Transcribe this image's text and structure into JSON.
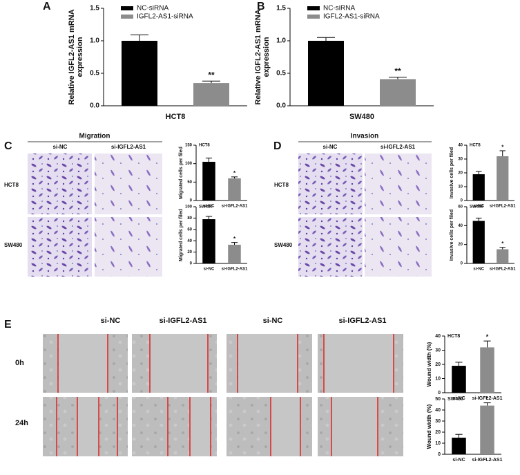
{
  "labels": {
    "panel_letters": [
      "A",
      "B",
      "C",
      "D",
      "E"
    ],
    "migration": "Migration",
    "invasion": "Invasion",
    "C_columns": [
      "si-NC",
      "si-IGFL2-AS1"
    ],
    "C_rows": [
      "HCT8",
      "SW480"
    ],
    "D_columns": [
      "si-NC",
      "si-IGFL2-AS1"
    ],
    "D_rows": [
      "HCT8",
      "SW480"
    ],
    "E_columns": [
      "si-NC",
      "si-IGFL2-AS1",
      "si-NC",
      "si-IGFL2-AS1"
    ],
    "E_rows": [
      "0h",
      "24h"
    ]
  },
  "chart_data": [
    {
      "type": "bar",
      "y_label": [
        "Relative IGFL2-AS1 mRNA",
        "expression"
      ],
      "x_label": "HCT8",
      "series": [
        {
          "name": "NC-siRNA",
          "color": "#000000",
          "values": [
            1.0
          ],
          "errors": [
            0.09
          ]
        },
        {
          "name": "IGFL2-AS1-siRNA",
          "color": "#8c8c8c",
          "values": [
            0.35
          ],
          "errors": [
            0.03
          ]
        }
      ],
      "annotation": "**",
      "ylim": [
        0,
        1.5
      ],
      "yticks": [
        {
          "value": 0,
          "label": "0.0"
        },
        {
          "value": 0.5,
          "label": "0.5"
        },
        {
          "value": 1,
          "label": "1.0"
        },
        {
          "value": 1.5,
          "label": "1.5"
        }
      ]
    },
    {
      "type": "bar",
      "y_label": [
        "Relative IGFL2-AS1 mRNA",
        "expression"
      ],
      "x_label": "SW480",
      "series": [
        {
          "name": "NC-siRNA",
          "color": "#000000",
          "values": [
            1.0
          ],
          "errors": [
            0.05
          ]
        },
        {
          "name": "IGFL2-AS1-siRNA",
          "color": "#8c8c8c",
          "values": [
            0.41
          ],
          "errors": [
            0.03
          ]
        }
      ],
      "annotation": "**",
      "ylim": [
        0,
        1.5
      ],
      "yticks": [
        {
          "value": 0,
          "label": "0.0"
        },
        {
          "value": 0.5,
          "label": "0.5"
        },
        {
          "value": 1,
          "label": "1.0"
        },
        {
          "value": 1.5,
          "label": "1.5"
        }
      ]
    },
    {
      "type": "bar",
      "title": "HCT8",
      "y_label": "Migrated cells per filed",
      "categories": [
        "si-NC",
        "si-IGFL2-AS1"
      ],
      "values": [
        105,
        60
      ],
      "errors": [
        10,
        4
      ],
      "colors": [
        "#000000",
        "#8c8c8c"
      ],
      "annotation": "*",
      "ylim": [
        0,
        150
      ],
      "yticks": [
        0,
        50,
        100,
        150
      ]
    },
    {
      "type": "bar",
      "title": "SW480",
      "y_label": "Migrated cells per filed",
      "categories": [
        "si-NC",
        "si-IGFL2-AS1"
      ],
      "values": [
        78,
        33
      ],
      "errors": [
        5,
        4
      ],
      "colors": [
        "#000000",
        "#8c8c8c"
      ],
      "annotation": "*",
      "ylim": [
        0,
        100
      ],
      "yticks": [
        0,
        20,
        40,
        60,
        80,
        100
      ]
    },
    {
      "type": "bar",
      "title": "HCT8",
      "y_label": "Invasive cells per filed",
      "categories": [
        "si-NC",
        "si-IGFL2-AS1"
      ],
      "values": [
        19,
        32
      ],
      "errors": [
        2,
        4
      ],
      "colors": [
        "#000000",
        "#8c8c8c"
      ],
      "annotation": "*",
      "ylim": [
        0,
        40
      ],
      "yticks": [
        0,
        10,
        20,
        30,
        40
      ]
    },
    {
      "type": "bar",
      "title": "SW480",
      "y_label": "Invasive cells per filed",
      "categories": [
        "si-NC",
        "si-IGFL2-AS1"
      ],
      "values": [
        45,
        15
      ],
      "errors": [
        3,
        2
      ],
      "colors": [
        "#000000",
        "#8c8c8c"
      ],
      "annotation": "*",
      "ylim": [
        0,
        60
      ],
      "yticks": [
        0,
        20,
        40,
        60
      ]
    },
    {
      "type": "bar",
      "title": "HCT8",
      "y_label": "Wound width (%)",
      "categories": [
        "si-NC",
        "si-IGFL2-AS1"
      ],
      "values": [
        19,
        32
      ],
      "errors": [
        2.5,
        4.5
      ],
      "colors": [
        "#000000",
        "#8c8c8c"
      ],
      "annotation": "*",
      "ylim": [
        0,
        40
      ],
      "yticks": [
        0,
        10,
        20,
        30,
        40
      ]
    },
    {
      "type": "bar",
      "title": "SW480",
      "y_label": "Wound width (%)",
      "categories": [
        "si-NC",
        "si-IGFL2-AS1"
      ],
      "values": [
        15,
        44
      ],
      "errors": [
        3,
        2.5
      ],
      "colors": [
        "#000000",
        "#8c8c8c"
      ],
      "annotation": "*",
      "ylim": [
        0,
        50
      ],
      "yticks": [
        0,
        10,
        20,
        30,
        40,
        50
      ]
    }
  ]
}
